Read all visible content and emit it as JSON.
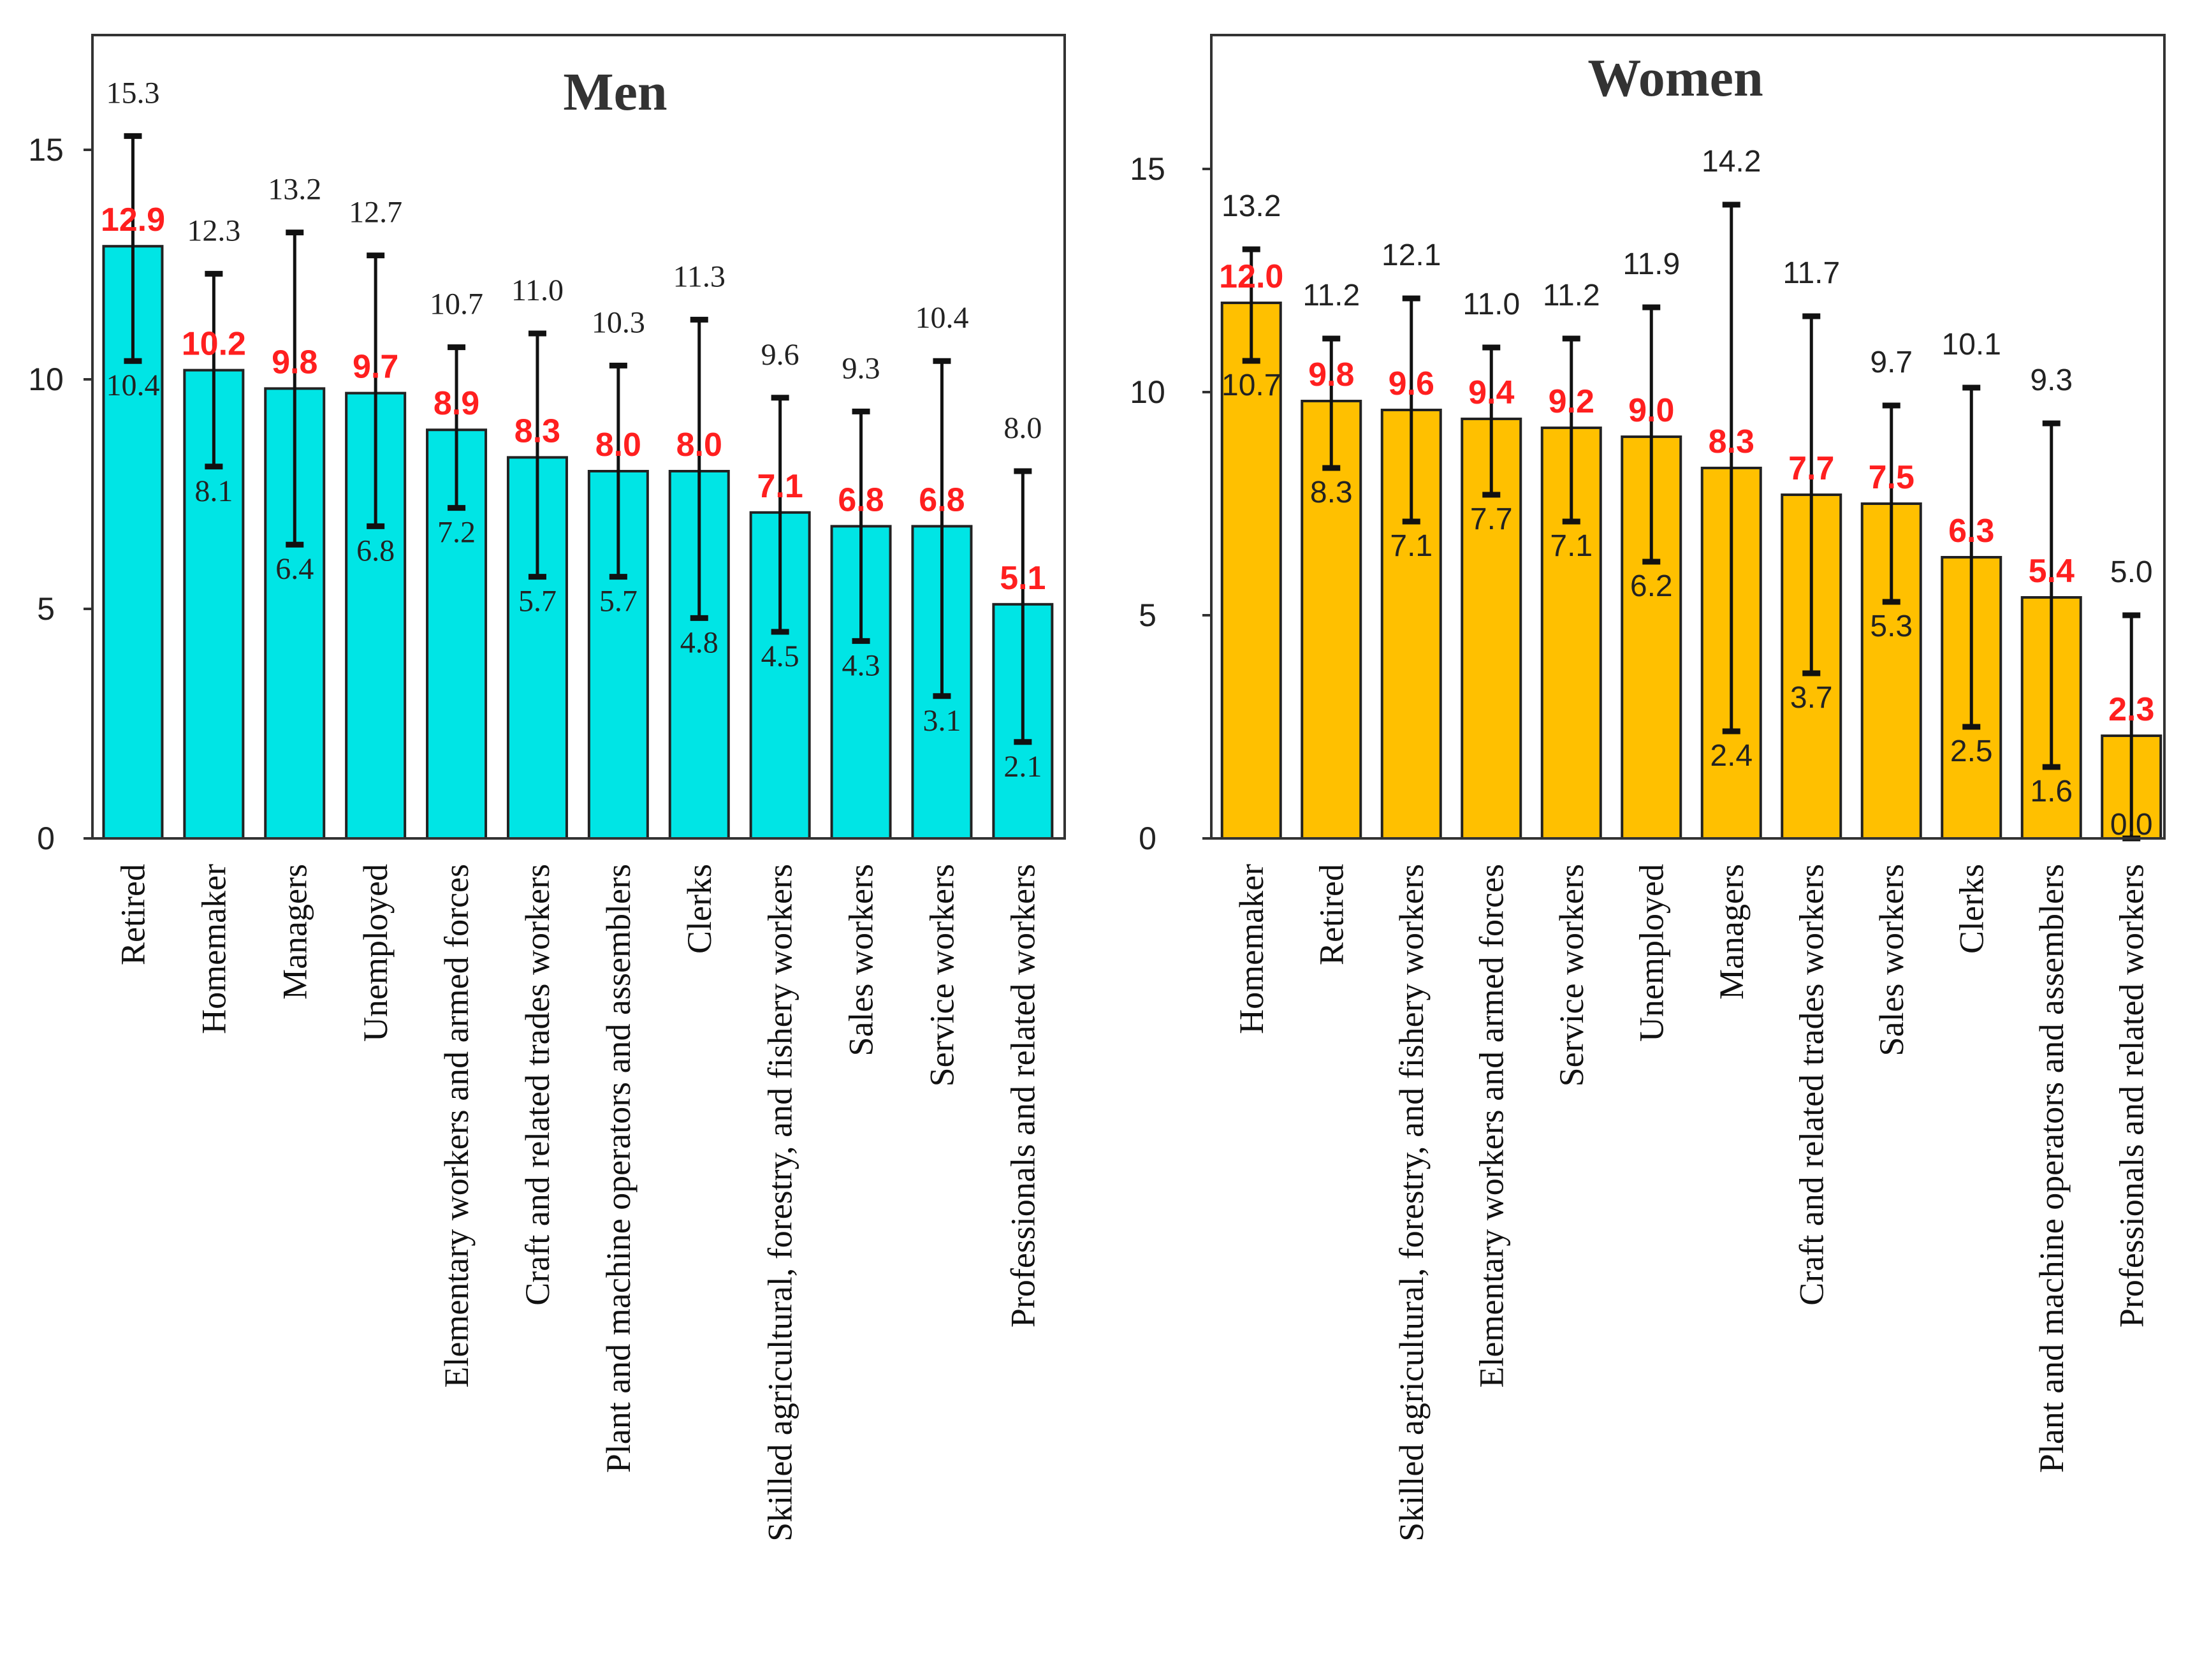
{
  "chart_data": [
    {
      "type": "bar",
      "title": "Men",
      "ylim": [
        0,
        17.5
      ],
      "yticks": [
        0,
        5,
        10,
        15
      ],
      "bar_color": "#00e5e5",
      "label_font": "serif",
      "categories": [
        "Retired",
        "Homemaker",
        "Managers",
        "Unemployed",
        "Elementary workers and armed forces",
        "Craft and related trades workers",
        "Plant and machine operators and assemblers",
        "Clerks",
        "Skilled agricultural, forestry, and fishery workers",
        "Sales workers",
        "Service workers",
        "Professionals and related workers"
      ],
      "values": [
        12.9,
        10.2,
        9.8,
        9.7,
        8.9,
        8.3,
        8.0,
        8.0,
        7.1,
        6.8,
        6.8,
        5.1
      ],
      "lower": [
        10.4,
        8.1,
        6.4,
        6.8,
        7.2,
        5.7,
        5.7,
        4.8,
        4.5,
        4.3,
        3.1,
        2.1
      ],
      "upper": [
        15.3,
        12.3,
        13.2,
        12.7,
        10.7,
        11.0,
        10.3,
        11.3,
        9.6,
        9.3,
        10.4,
        8.0
      ],
      "value_labels": [
        "12.9",
        "10.2",
        "9.8",
        "9.7",
        "8.9",
        "8.3",
        "8.0",
        "8.0",
        "7.1",
        "6.8",
        "6.8",
        "5.1"
      ],
      "lower_labels": [
        "10.4",
        "8.1",
        "6.4",
        "6.8",
        "7.2",
        "5.7",
        "5.7",
        "4.8",
        "4.5",
        "4.3",
        "3.1",
        "2.1"
      ],
      "upper_labels": [
        "15.3",
        "12.3",
        "13.2",
        "12.7",
        "10.7",
        "11.0",
        "10.3",
        "11.3",
        "9.6",
        "9.3",
        "10.4",
        "8.0"
      ],
      "grid": false
    },
    {
      "type": "bar",
      "title": "Women",
      "ylim": [
        0,
        18
      ],
      "yticks": [
        0,
        5,
        10,
        15
      ],
      "bar_color": "#ffc000",
      "label_font": "sans",
      "categories": [
        "Homemaker",
        "Retired",
        "Skilled agricultural, forestry, and fishery workers",
        "Elementary workers and armed forces",
        "Service workers",
        "Unemployed",
        "Managers",
        "Craft and related trades workers",
        "Sales workers",
        "Clerks",
        "Plant and machine operators and assemblers",
        "Professionals and related workers"
      ],
      "values": [
        12.0,
        9.8,
        9.6,
        9.4,
        9.2,
        9.0,
        8.3,
        7.7,
        7.5,
        6.3,
        5.4,
        2.3
      ],
      "lower": [
        10.7,
        8.3,
        7.1,
        7.7,
        7.1,
        6.2,
        2.4,
        3.7,
        5.3,
        2.5,
        1.6,
        0.0
      ],
      "upper": [
        13.2,
        11.2,
        12.1,
        11.0,
        11.2,
        11.9,
        14.2,
        11.7,
        9.7,
        10.1,
        9.3,
        5.0
      ],
      "value_labels": [
        "12.0",
        "9.8",
        "9.6",
        "9.4",
        "9.2",
        "9.0",
        "8.3",
        "7.7",
        "7.5",
        "6.3",
        "5.4",
        "2.3"
      ],
      "lower_labels": [
        "10.7",
        "8.3",
        "7.1",
        "7.7",
        "7.1",
        "6.2",
        "2.4",
        "3.7",
        "5.3",
        "2.5",
        "1.6",
        "0.0"
      ],
      "upper_labels": [
        "13.2",
        "11.2",
        "12.1",
        "11.0",
        "11.2",
        "11.9",
        "14.2",
        "11.7",
        "9.7",
        "10.1",
        "9.3",
        "5.0"
      ],
      "grid": false
    }
  ]
}
